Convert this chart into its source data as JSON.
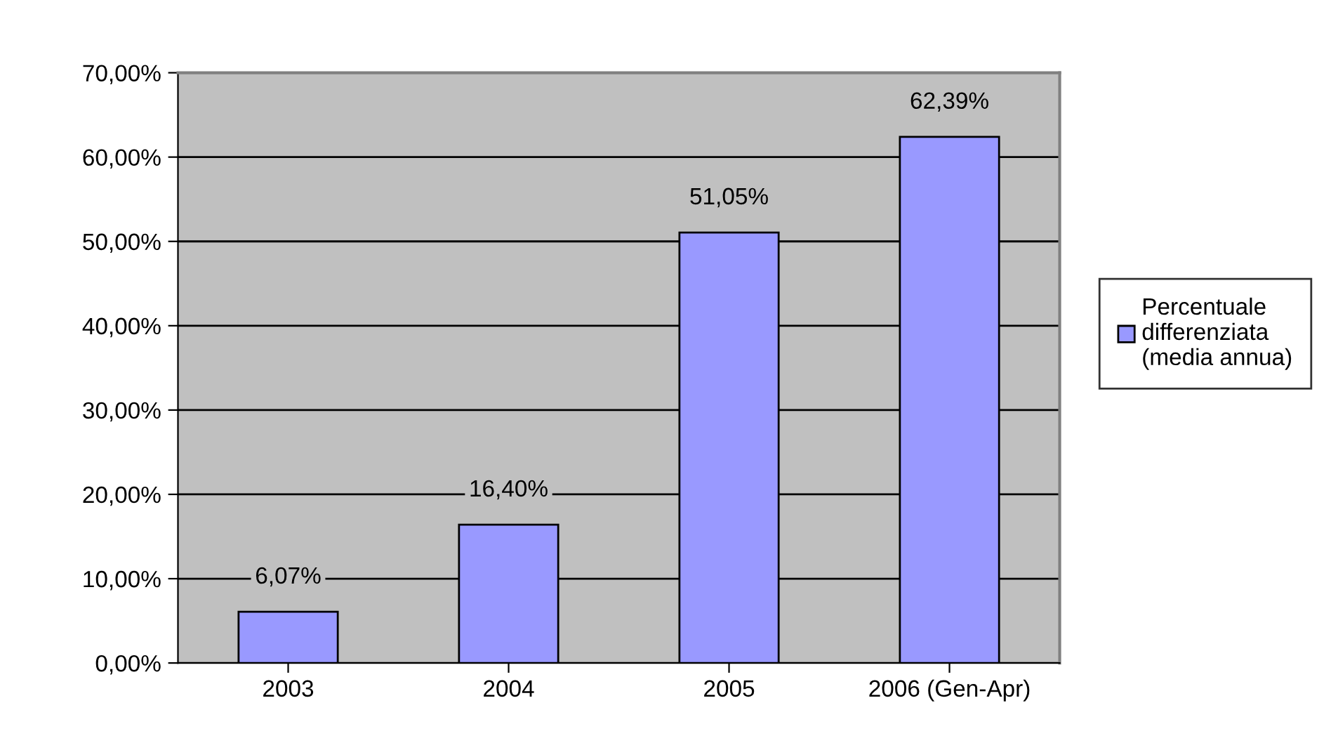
{
  "chart_data": {
    "type": "bar",
    "categories": [
      "2003",
      "2004",
      "2005",
      "2006 (Gen-Apr)"
    ],
    "series": [
      {
        "name": "Percentuale\ndifferenziata\n(media annua)",
        "color": "#9999ff",
        "values": [
          6.07,
          16.4,
          51.05,
          62.39
        ],
        "value_labels": [
          "6,07%",
          "16,40%",
          "51,05%",
          "62,39%"
        ]
      }
    ],
    "ylim": [
      0,
      70
    ],
    "yticks": [
      {
        "value": 0,
        "label": "0,00%"
      },
      {
        "value": 10,
        "label": "10,00%"
      },
      {
        "value": 20,
        "label": "20,00%"
      },
      {
        "value": 30,
        "label": "30,00%"
      },
      {
        "value": 40,
        "label": "40,00%"
      },
      {
        "value": 50,
        "label": "50,00%"
      },
      {
        "value": 60,
        "label": "60,00%"
      },
      {
        "value": 70,
        "label": "70,00%"
      }
    ],
    "grid": "y",
    "legend": "right"
  }
}
